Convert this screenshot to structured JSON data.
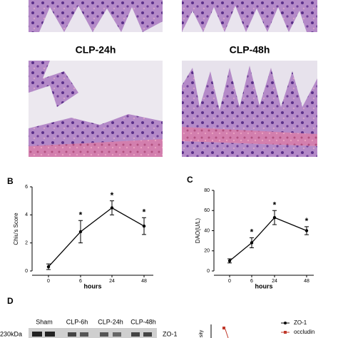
{
  "panel_a": {
    "labels": [
      "CLP-24h",
      "CLP-48h"
    ]
  },
  "chart_data": [
    {
      "type": "line",
      "panel_label": "B",
      "categories": [
        "0",
        "6",
        "24",
        "48"
      ],
      "values": [
        0.3,
        2.8,
        4.5,
        3.2
      ],
      "errors": [
        0.2,
        0.8,
        0.5,
        0.6
      ],
      "annotations": [
        null,
        "*",
        "*",
        "*"
      ],
      "x_label": "hours",
      "y_label": "Chiu's Score",
      "ylim": [
        0,
        6
      ],
      "yticks": [
        0,
        2,
        4,
        6
      ],
      "color": "#000000"
    },
    {
      "type": "line",
      "panel_label": "C",
      "categories": [
        "0",
        "6",
        "24",
        "48"
      ],
      "values": [
        10,
        28,
        53,
        40
      ],
      "errors": [
        2,
        5,
        7,
        4
      ],
      "annotations": [
        null,
        "*",
        "*",
        "*"
      ],
      "x_label": "hours",
      "y_label": "DAO(U/L)",
      "ylim": [
        0,
        80
      ],
      "yticks": [
        0,
        20,
        40,
        60,
        80
      ],
      "color": "#000000"
    }
  ],
  "panel_d": {
    "panel_label": "D",
    "lanes": [
      "Sham",
      "CLP-6h",
      "CLP-24h",
      "CLP-48h"
    ],
    "marker": "230kDa",
    "band": "ZO-1",
    "legend": [
      "ZO-1",
      "occludin"
    ],
    "y_label": "sity"
  }
}
